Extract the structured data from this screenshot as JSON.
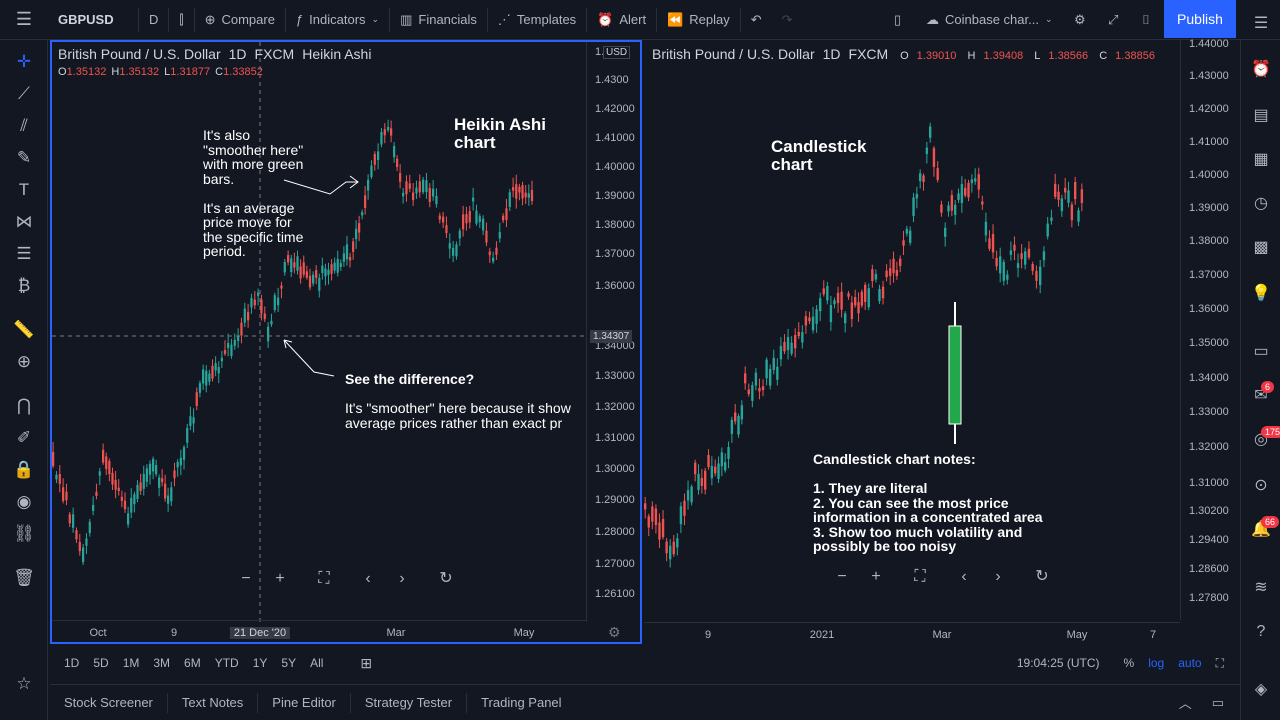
{
  "topbar": {
    "symbol": "GBPUSD",
    "interval": "D",
    "compare": "Compare",
    "indicators": "Indicators",
    "financials": "Financials",
    "templates": "Templates",
    "alert": "Alert",
    "replay": "Replay",
    "layout_name": "Coinbase char...",
    "publish": "Publish"
  },
  "left_chart": {
    "title": [
      "British Pound / U.S. Dollar",
      "1D",
      "FXCM",
      "Heikin Ashi"
    ],
    "ohlc": {
      "o": "1.35132",
      "h": "1.35132",
      "l": "1.31877",
      "c": "1.33852"
    },
    "currency": "USD",
    "price_ticks": [
      "1.4300",
      "1.42000",
      "1.41000",
      "1.40000",
      "1.39000",
      "1.38000",
      "1.37000",
      "1.36000",
      "1.34000",
      "1.33000",
      "1.32000",
      "1.31000",
      "1.30000",
      "1.29000",
      "1.28000",
      "1.27000",
      "1.26100"
    ],
    "price_ticks_top": "1.",
    "crosshair_price": "1.34307",
    "time_ticks": [
      "Oct",
      "9",
      "21 Dec '20",
      "Mar",
      "May"
    ],
    "notes": {
      "smoother": "It's also\n\"smoother here\"\nwith more green\nbars.\n\nIt's an average\nprice move for\nthe specific time\nperiod.",
      "heading": "Heikin Ashi\nchart",
      "difference_title": "See the difference?",
      "difference_body": "It's \"smoother\" here because it show\naverage prices rather than exact pr"
    }
  },
  "right_chart": {
    "title": [
      "British Pound / U.S. Dollar",
      "1D",
      "FXCM"
    ],
    "ohlc": {
      "o": "1.39010",
      "h": "1.39408",
      "l": "1.38566",
      "c": "1.38856"
    },
    "price_ticks": [
      "1.44000",
      "1.43000",
      "1.42000",
      "1.41000",
      "1.40000",
      "1.39000",
      "1.38000",
      "1.37000",
      "1.36000",
      "1.35000",
      "1.34000",
      "1.33000",
      "1.32000",
      "1.31000",
      "1.30200",
      "1.29400",
      "1.28600",
      "1.27800"
    ],
    "time_ticks": [
      "9",
      "2021",
      "Mar",
      "May",
      "7"
    ],
    "notes": {
      "heading": "Candlestick\nchart",
      "list": "Candlestick chart notes:\n\n1. They are literal\n2. You can see the most price\ninformation in a concentrated area\n3. Show too much volatility and\npossibly be too noisy"
    }
  },
  "range": {
    "buttons": [
      "1D",
      "5D",
      "1M",
      "3M",
      "6M",
      "YTD",
      "1Y",
      "5Y",
      "All"
    ],
    "time": "19:04:25 (UTC)",
    "percent": "%",
    "log": "log",
    "auto": "auto"
  },
  "bottom_tabs": [
    "Stock Screener",
    "Text Notes",
    "Pine Editor",
    "Strategy Tester",
    "Trading Panel"
  ],
  "right_badges": [
    "6",
    "175",
    "66"
  ],
  "colors": {
    "up": "#26a69a",
    "down": "#ef5350",
    "accent": "#2962ff",
    "bg": "#131722"
  }
}
